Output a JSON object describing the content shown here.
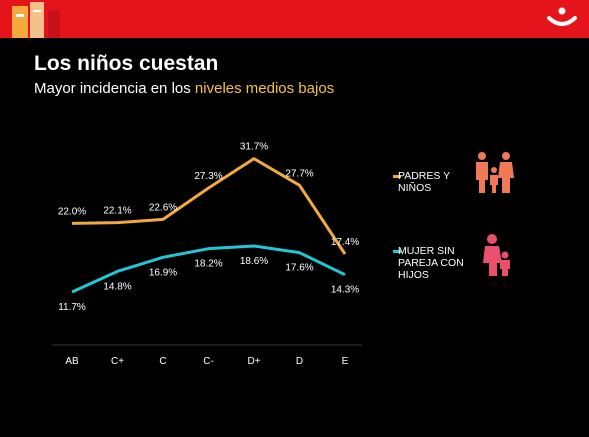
{
  "header": {
    "title": "Los niños cuestan",
    "subtitle_prefix": "Mayor incidencia en los ",
    "subtitle_highlight": "niveles medios bajos"
  },
  "colors": {
    "brand_red": "#e5141b",
    "series_padres": "#f3a93c",
    "series_mujer": "#22c6d6",
    "highlight": "#f5c23c",
    "icon_orange": "#f07a55",
    "icon_pink": "#e8506b"
  },
  "legend": [
    {
      "label_line1": "PADRES Y",
      "label_line2": "NIÑOS",
      "icon": "family-icon"
    },
    {
      "label_line1": "MUJER SIN",
      "label_line2": "PAREJA CON",
      "label_line3": "HIJOS",
      "icon": "single-mother-icon"
    }
  ],
  "chart_data": {
    "type": "line",
    "categories": [
      "AB",
      "C+",
      "C",
      "C-",
      "D+",
      "D",
      "E"
    ],
    "series": [
      {
        "name": "PADRES Y NIÑOS",
        "values": [
          22.0,
          22.1,
          22.6,
          27.3,
          31.7,
          27.7,
          17.4
        ],
        "labels": [
          "22.0%",
          "22.1%",
          "22.6%",
          "27.3%",
          "31.7%",
          "27.7%",
          "17.4%"
        ]
      },
      {
        "name": "MUJER SIN PAREJA CON HIJOS",
        "values": [
          11.7,
          14.8,
          16.9,
          18.2,
          18.6,
          17.6,
          14.3
        ],
        "labels": [
          "11.7%",
          "14.8%",
          "16.9%",
          "18.2%",
          "18.6%",
          "17.6%",
          "14.3%"
        ]
      }
    ],
    "xlabel": "",
    "ylabel": "",
    "ylim": [
      9,
      33
    ],
    "grid": false,
    "legend_position": "right"
  }
}
